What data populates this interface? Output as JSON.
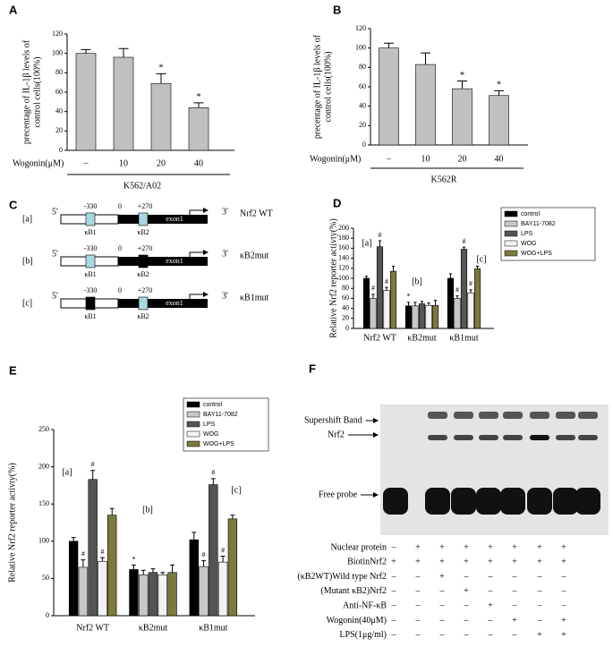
{
  "panel_labels": [
    "A",
    "B",
    "C",
    "D",
    "E",
    "F"
  ],
  "chart_data": [
    {
      "type": "bar",
      "ylabel": [
        "precentage of IL-1β levels of",
        "control cells(100%)"
      ],
      "xlabel": "Wogonin(μM)",
      "categories": [
        "–",
        "10",
        "20",
        "40"
      ],
      "group_label": "K562/A02",
      "values": [
        100,
        96,
        69,
        44
      ],
      "errors": [
        4,
        9,
        10,
        5
      ],
      "markers": [
        null,
        null,
        "*",
        "*"
      ],
      "color": "#c0c0c0",
      "ylim": [
        0,
        120
      ],
      "yticks": [
        0,
        20,
        40,
        60,
        80,
        100,
        120
      ]
    },
    {
      "type": "bar",
      "ylabel": [
        "precentage of IL-1β levels of",
        "control cells(100%)"
      ],
      "xlabel": "Wogonin(μM)",
      "categories": [
        "–",
        "10",
        "20",
        "40"
      ],
      "group_label": "K562R",
      "values": [
        100,
        83,
        58,
        51
      ],
      "errors": [
        5,
        12,
        8,
        5
      ],
      "markers": [
        null,
        null,
        "*",
        "*"
      ],
      "color": "#c0c0c0",
      "ylim": [
        0,
        120
      ],
      "yticks": [
        0,
        20,
        40,
        60,
        80,
        100,
        120
      ]
    },
    {
      "type": "grouped_bar",
      "ylabel": "Relative  Nrf2 reporter activty(%)",
      "categories": [
        "Nrf2 WT",
        "κB2mut",
        "κB1mut"
      ],
      "group_labels": [
        "[a]",
        "[b]",
        "[c]"
      ],
      "ylim": [
        0,
        200
      ],
      "yticks": [
        0,
        20,
        40,
        60,
        80,
        100,
        120,
        140,
        160,
        180,
        200
      ],
      "series": [
        {
          "name": "control",
          "color": "#000000",
          "values": [
            100,
            45,
            100
          ],
          "errors": [
            4,
            7,
            9
          ],
          "markers": [
            null,
            "*",
            null
          ]
        },
        {
          "name": "BAY11-7082",
          "color": "#c8c8c8",
          "values": [
            60,
            45,
            60
          ],
          "errors": [
            8,
            7,
            5
          ],
          "markers": [
            "#",
            null,
            "#"
          ]
        },
        {
          "name": "LPS",
          "color": "#555555",
          "values": [
            163,
            49,
            158
          ],
          "errors": [
            12,
            5,
            4
          ],
          "markers": [
            "#",
            null,
            "#"
          ]
        },
        {
          "name": "WOG",
          "color": "#f2f2f2",
          "values": [
            76,
            46,
            71
          ],
          "errors": [
            6,
            5,
            6
          ],
          "markers": [
            "#",
            null,
            "#"
          ]
        },
        {
          "name": "WOG+LPS",
          "color": "#7a7a3c",
          "values": [
            114,
            46,
            119
          ],
          "errors": [
            10,
            10,
            5
          ]
        }
      ]
    },
    {
      "type": "grouped_bar",
      "ylabel": "Relative  Nrf2 reporter activty(%)",
      "categories": [
        "Nrf2 WT",
        "κB2mut",
        "κB1mut"
      ],
      "group_labels": [
        "[a]",
        "[b]",
        "[c]"
      ],
      "ylim": [
        0,
        250
      ],
      "yticks": [
        0,
        50,
        100,
        150,
        200,
        250
      ],
      "series": [
        {
          "name": "control",
          "color": "#000000",
          "values": [
            100,
            62,
            102
          ],
          "errors": [
            5,
            6,
            10
          ],
          "markers": [
            null,
            "*",
            null
          ]
        },
        {
          "name": "BAY11-7082",
          "color": "#c8c8c8",
          "values": [
            65,
            55,
            66
          ],
          "errors": [
            10,
            6,
            8
          ],
          "markers": [
            "#",
            null,
            "#"
          ]
        },
        {
          "name": "LPS",
          "color": "#555555",
          "values": [
            183,
            58,
            176
          ],
          "errors": [
            12,
            5,
            8
          ],
          "markers": [
            "#",
            null,
            "#"
          ]
        },
        {
          "name": "WOG",
          "color": "#f2f2f2",
          "values": [
            73,
            55,
            72
          ],
          "errors": [
            5,
            3,
            8
          ],
          "markers": [
            "#",
            null,
            "#"
          ]
        },
        {
          "name": "WOG+LPS",
          "color": "#7a7a3c",
          "values": [
            135,
            58,
            130
          ],
          "errors": [
            9,
            10,
            5
          ]
        }
      ]
    }
  ],
  "diagram": {
    "constructs": [
      {
        "tag": "[a]",
        "name": "Nrf2 WT",
        "five": "5'",
        "three": "3'",
        "positions": [
          "-330",
          "0",
          "+270"
        ],
        "exon": "exon1",
        "sites": [
          "κB1",
          "κB2"
        ]
      },
      {
        "tag": "[b]",
        "name": "κB2mut",
        "five": "5'",
        "three": "3'",
        "positions": [
          "-330",
          "0",
          "+270"
        ],
        "exon": "exon1",
        "sites": [
          "κB1",
          "κB2"
        ]
      },
      {
        "tag": "[c]",
        "name": "κB1mut",
        "five": "5'",
        "three": "3'",
        "positions": [
          "-330",
          "0",
          "+270"
        ],
        "exon": "exon1",
        "sites": [
          "κB1",
          "κB2"
        ]
      }
    ]
  },
  "gel": {
    "bands": [
      "Supershift Band",
      "Nrf2",
      "Free probe"
    ],
    "rows": [
      {
        "label": "Nuclear protein",
        "cells": [
          "–",
          "+",
          "+",
          "+",
          "+",
          "+",
          "+",
          "+"
        ]
      },
      {
        "label": "BiotinNrf2",
        "cells": [
          "+",
          "+",
          "+",
          "+",
          "+",
          "+",
          "+",
          "+"
        ]
      },
      {
        "label": "(κB2WT)Wild type Nrf2",
        "cells": [
          "–",
          "–",
          "+",
          "–",
          "–",
          "–",
          "–",
          "–"
        ]
      },
      {
        "label": "(Mutant κB2)Nrf2",
        "cells": [
          "–",
          "–",
          "–",
          "+",
          "–",
          "–",
          "–",
          "–"
        ]
      },
      {
        "label": "Anti-NF-κB",
        "cells": [
          "–",
          "–",
          "–",
          "–",
          "+",
          "–",
          "–",
          "–"
        ]
      },
      {
        "label": "Wogonin(40μM)",
        "cells": [
          "–",
          "–",
          "–",
          "–",
          "–",
          "+",
          "–",
          "+"
        ]
      },
      {
        "label": "LPS(1μg/ml)",
        "cells": [
          "–",
          "–",
          "–",
          "–",
          "–",
          "–",
          "+",
          "+"
        ]
      }
    ]
  }
}
